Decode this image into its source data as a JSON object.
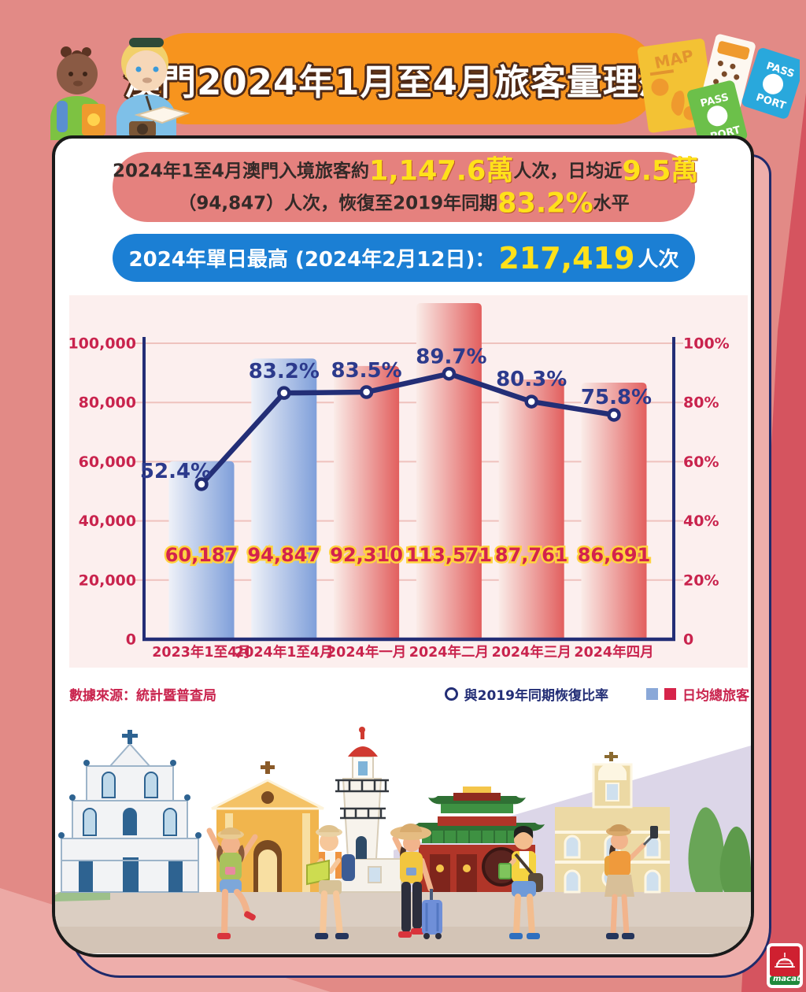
{
  "header": {
    "title": "澳門2024年1月至4月旅客量理想"
  },
  "decor": {
    "map_label": "MAP",
    "passport_word_top": "PASS",
    "passport_word_bottom": "PORT",
    "logo_text": "macau"
  },
  "stats_banner": {
    "line1": [
      {
        "text": "2024年1至4月澳門入境旅客約"
      },
      {
        "text": "1,147.6萬"
      },
      {
        "text": "人次，日均近"
      },
      {
        "text": "9.5萬"
      }
    ],
    "line2": [
      {
        "text": "（94,847）人次，恢復至2019年同期"
      },
      {
        "text": "83.2%"
      },
      {
        "text": "水平"
      }
    ]
  },
  "peak_banner": {
    "prefix": "2024年單日最高 (2024年2月12日)：",
    "value": "217,419",
    "suffix": "人次"
  },
  "chart_data": {
    "type": "bar",
    "title": "",
    "categories": [
      "2023年1至4月",
      "2024年1至4月",
      "2024年一月",
      "2024年二月",
      "2024年三月",
      "2024年四月"
    ],
    "series": [
      {
        "name": "日均總旅客",
        "type": "bar",
        "values": [
          60187,
          94847,
          92310,
          113571,
          87761,
          86691
        ],
        "bar_colors": [
          "blue",
          "blue",
          "red",
          "red",
          "red",
          "red"
        ]
      },
      {
        "name": "與2019年同期恢復比率",
        "type": "line",
        "unit": "%",
        "values": [
          52.4,
          83.2,
          83.5,
          89.7,
          80.3,
          75.8
        ]
      }
    ],
    "value_labels": [
      "60,187",
      "94,847",
      "92,310",
      "113,571",
      "87,761",
      "86,691"
    ],
    "line_labels": [
      "52.4%",
      "83.2%",
      "83.5%",
      "89.7%",
      "80.3%",
      "75.8%"
    ],
    "left_axis": {
      "min": 0,
      "max": 100000,
      "ticks": [
        {
          "label": "100,000",
          "value": 100000
        },
        {
          "label": "80,000",
          "value": 80000
        },
        {
          "label": "60,000",
          "value": 60000
        },
        {
          "label": "40,000",
          "value": 40000
        },
        {
          "label": "20,000",
          "value": 20000
        },
        {
          "label": "0",
          "value": 0
        }
      ]
    },
    "right_axis": {
      "min": 0,
      "max": 100,
      "ticks": [
        {
          "label": "100%",
          "value": 100
        },
        {
          "label": "80%",
          "value": 80
        },
        {
          "label": "60%",
          "value": 60
        },
        {
          "label": "40%",
          "value": 40
        },
        {
          "label": "20%",
          "value": 20
        },
        {
          "label": "0",
          "value": 0
        }
      ]
    },
    "grid": true,
    "legend_position": "bottom-right",
    "colors": {
      "bar_blue": "#7f9fda",
      "bar_red": "#e25f5e",
      "line_navy": "#232e76",
      "tick_crimson": "#c9234d",
      "value_label_fill": "#d3234d",
      "value_label_outline": "#ffd23f"
    }
  },
  "footer": {
    "source": "數據來源：統計暨普查局",
    "legend_line": "與2019年同期恢復比率",
    "legend_bars": "日均總旅客"
  }
}
